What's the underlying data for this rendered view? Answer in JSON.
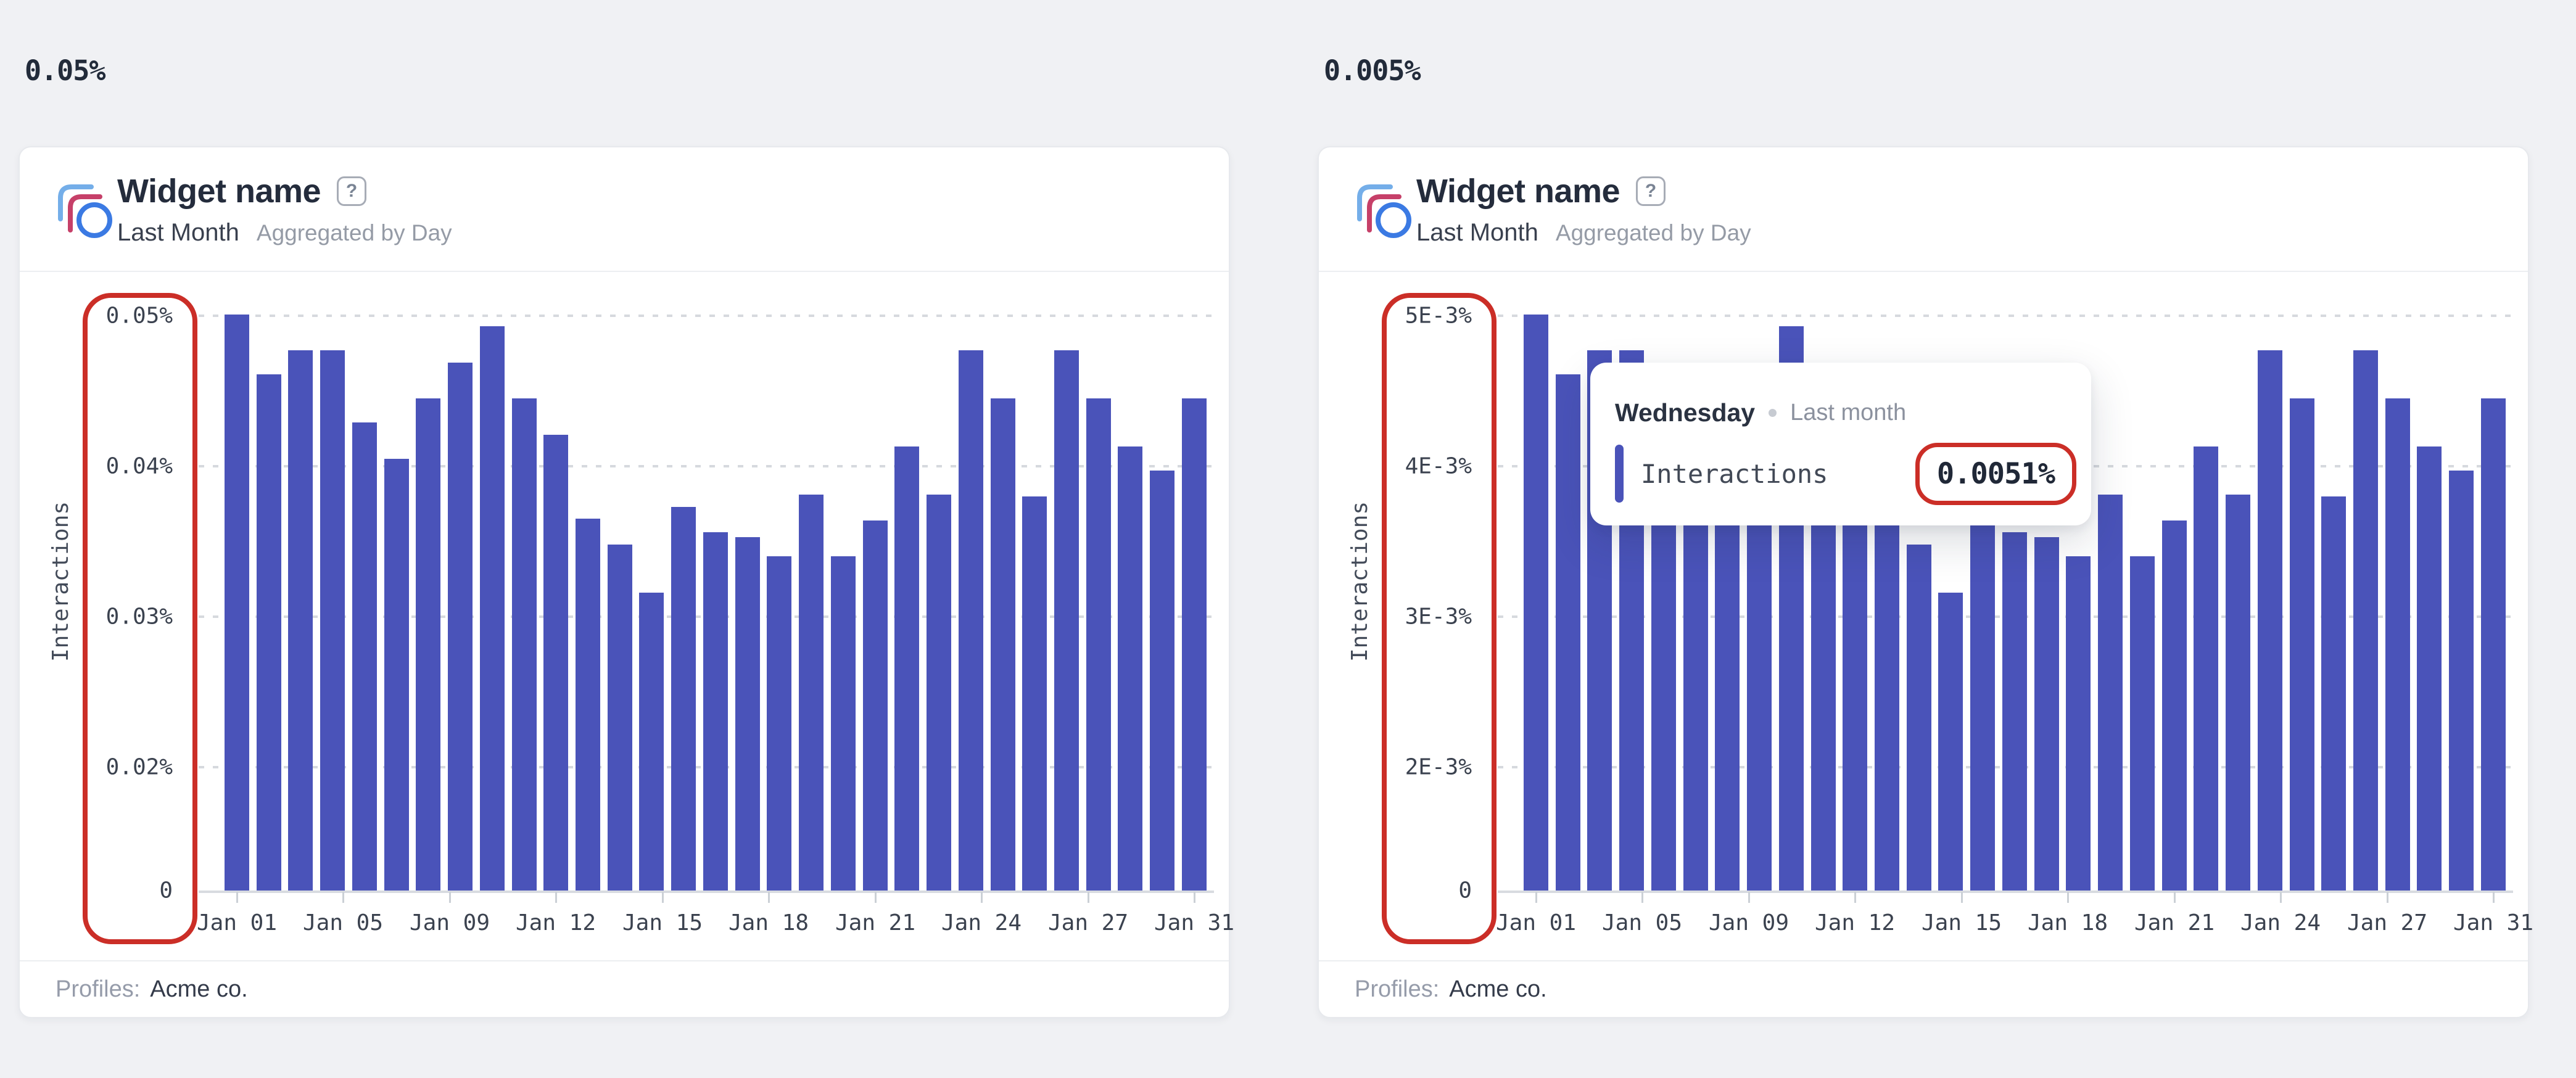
{
  "page": {
    "left_scale_note": "0.05%",
    "right_scale_note": "0.005%"
  },
  "colors": {
    "bar": "#4a53b9",
    "annotation_red": "#cb2e27",
    "page_background": "#f0f1f4",
    "card_background": "#ffffff",
    "icon_light_blue": "#74aee9",
    "icon_rose": "#c64069",
    "icon_blue": "#3b7ae3"
  },
  "cards": [
    {
      "title": "Widget name",
      "help_glyph": "?",
      "period": "Last Month",
      "aggregation": "Aggregated by Day",
      "y_axis": {
        "title": "Interactions",
        "tick_labels": [
          "0.05%",
          "0.04%",
          "0.03%",
          "0.02%",
          "0"
        ]
      },
      "x_tick_labels": [
        "Jan 01",
        "Jan 05",
        "Jan 09",
        "Jan 12",
        "Jan 15",
        "Jan 18",
        "Jan 21",
        "Jan 24",
        "Jan 27",
        "Jan 31"
      ],
      "footer_label": "Profiles:",
      "footer_value": "Acme co."
    },
    {
      "title": "Widget name",
      "help_glyph": "?",
      "period": "Last Month",
      "aggregation": "Aggregated by Day",
      "y_axis": {
        "title": "Interactions",
        "tick_labels": [
          "5E-3%",
          "4E-3%",
          "3E-3%",
          "2E-3%",
          "0"
        ]
      },
      "x_tick_labels": [
        "Jan 01",
        "Jan 05",
        "Jan 09",
        "Jan 12",
        "Jan 15",
        "Jan 18",
        "Jan 21",
        "Jan 24",
        "Jan 27",
        "Jan 31"
      ],
      "footer_label": "Profiles:",
      "footer_value": "Acme co."
    }
  ],
  "tooltip": {
    "title": "Wednesday",
    "context": "Last month",
    "metric": "Interactions",
    "value": "0.0051%"
  },
  "chart_data": {
    "type": "bar",
    "title": "Widget name — Interactions, Last Month, Aggregated by Day (two widgets, same series at 10x different scale)",
    "xlabel": "",
    "ylabel": "Interactions",
    "grid": "dotted horizontal gridlines, solid baseline",
    "legend_position": "none",
    "categories": [
      "Jan 01",
      "Jan 02",
      "Jan 03",
      "Jan 04",
      "Jan 05",
      "Jan 06",
      "Jan 07",
      "Jan 08",
      "Jan 09",
      "Jan 10",
      "Jan 11",
      "Jan 12",
      "Jan 13",
      "Jan 14",
      "Jan 15",
      "Jan 16",
      "Jan 17",
      "Jan 18",
      "Jan 19",
      "Jan 20",
      "Jan 21",
      "Jan 22",
      "Jan 23",
      "Jan 24",
      "Jan 25",
      "Jan 26",
      "Jan 27",
      "Jan 28",
      "Jan 29",
      "Jan 30",
      "Jan 31"
    ],
    "x_axis_shown_labels": [
      "Jan 01",
      "Jan 05",
      "Jan 09",
      "Jan 12",
      "Jan 15",
      "Jan 18",
      "Jan 21",
      "Jan 24",
      "Jan 27",
      "Jan 31"
    ],
    "series": [
      {
        "name": "Interactions (left widget, %)",
        "unit": "%",
        "y_max": 0.05,
        "y_gridline_step": 0.01,
        "y_tick_labels": [
          "0.05%",
          "0.04%",
          "0.03%",
          "0.02%",
          "0"
        ],
        "values": [
          0.0501,
          0.0461,
          0.0477,
          0.0477,
          0.0429,
          0.0405,
          0.0445,
          0.0469,
          0.0493,
          0.0445,
          0.0421,
          0.0365,
          0.0348,
          0.0316,
          0.0373,
          0.0356,
          0.0353,
          0.034,
          0.0381,
          0.034,
          0.0364,
          0.0413,
          0.0381,
          0.0477,
          0.0445,
          0.038,
          0.0477,
          0.0445,
          0.0413,
          0.0397,
          0.0445
        ]
      },
      {
        "name": "Interactions (right widget, %)",
        "unit": "%",
        "y_max": 0.005,
        "y_gridline_step": 0.001,
        "y_tick_labels": [
          "5E-3%",
          "4E-3%",
          "3E-3%",
          "2E-3%",
          "0"
        ],
        "values": [
          0.00501,
          0.00461,
          0.00477,
          0.00477,
          0.00429,
          0.00405,
          0.00445,
          0.00469,
          0.00493,
          0.00445,
          0.00421,
          0.00365,
          0.00348,
          0.00316,
          0.00373,
          0.00356,
          0.00353,
          0.0034,
          0.00381,
          0.0034,
          0.00364,
          0.00413,
          0.00381,
          0.00477,
          0.00445,
          0.0038,
          0.00477,
          0.00445,
          0.00413,
          0.00397,
          0.00445
        ]
      }
    ],
    "bar_color": "#4a53b9",
    "tooltip_annotation": {
      "title": "Wednesday",
      "context": "Last month",
      "metric": "Interactions",
      "value": "0.0051%"
    }
  }
}
